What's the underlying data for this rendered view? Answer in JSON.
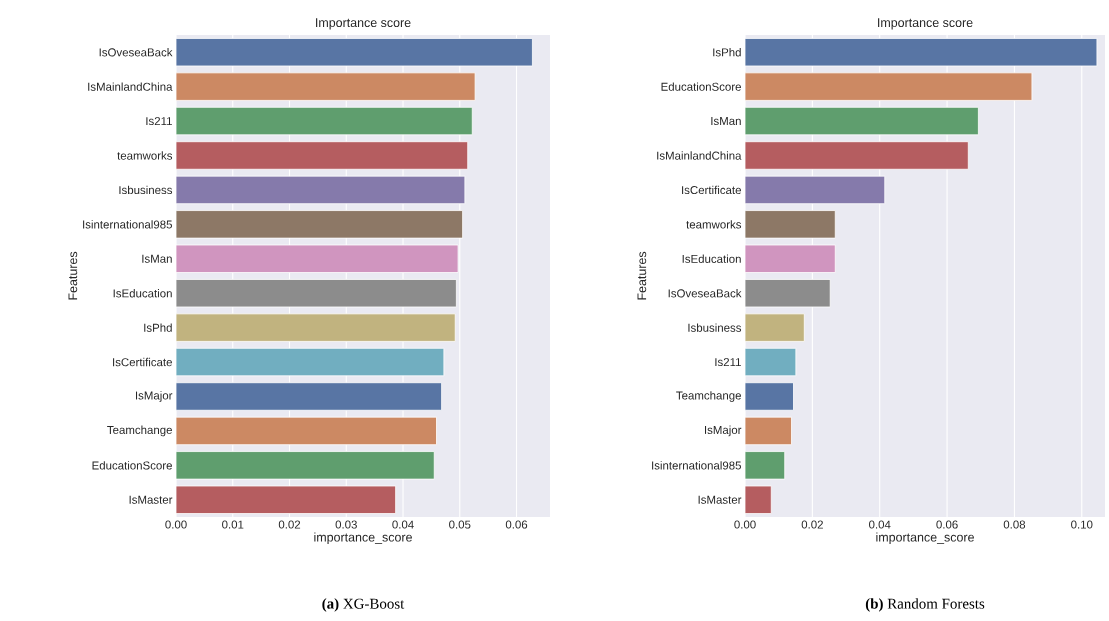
{
  "chart_data": [
    {
      "type": "bar",
      "orientation": "horizontal",
      "title": "Importance score",
      "xlabel": "importance_score",
      "ylabel": "Features",
      "categories": [
        "IsOveseaBack",
        "IsMainlandChina",
        "Is211",
        "teamworks",
        "Isbusiness",
        "Isinternational985",
        "IsMan",
        "IsEducation",
        "IsPhd",
        "IsCertificate",
        "IsMajor",
        "Teamchange",
        "EducationScore",
        "IsMaster"
      ],
      "values": [
        0.0628,
        0.0527,
        0.0522,
        0.0514,
        0.0509,
        0.0505,
        0.0497,
        0.0494,
        0.0492,
        0.0472,
        0.0468,
        0.0459,
        0.0455,
        0.0387
      ],
      "colors": [
        "#5875a4",
        "#cc8963",
        "#5f9e6e",
        "#b55d60",
        "#857aab",
        "#8d7866",
        "#d095bf",
        "#8c8c8c",
        "#c1b37f",
        "#71aec0",
        "#5875a4",
        "#cc8963",
        "#5f9e6e",
        "#b55d60"
      ],
      "xlim": [
        0,
        0.0659
      ],
      "xticks": [
        {
          "value": 0,
          "label": "0.00"
        },
        {
          "value": 0.01,
          "label": "0.01"
        },
        {
          "value": 0.02,
          "label": "0.02"
        },
        {
          "value": 0.03,
          "label": "0.03"
        },
        {
          "value": 0.04,
          "label": "0.04"
        },
        {
          "value": 0.05,
          "label": "0.05"
        },
        {
          "value": 0.06,
          "label": "0.06"
        }
      ],
      "grid": "x",
      "annotations": [
        "**(a)** XG-Boost"
      ]
    },
    {
      "type": "bar",
      "orientation": "horizontal",
      "title": "Importance score",
      "xlabel": "importance_score",
      "ylabel": "Features",
      "categories": [
        "IsPhd",
        "EducationScore",
        "IsMan",
        "IsMainlandChina",
        "IsCertificate",
        "teamworks",
        "IsEducation",
        "IsOveseaBack",
        "Isbusiness",
        "Is211",
        "Teamchange",
        "IsMajor",
        "Isinternational985",
        "IsMaster"
      ],
      "values": [
        0.1045,
        0.0852,
        0.0693,
        0.0663,
        0.0415,
        0.0268,
        0.0268,
        0.0253,
        0.0176,
        0.0151,
        0.0144,
        0.0138,
        0.0118,
        0.0078
      ],
      "colors": [
        "#5875a4",
        "#cc8963",
        "#5f9e6e",
        "#b55d60",
        "#857aab",
        "#8d7866",
        "#d095bf",
        "#8c8c8c",
        "#c1b37f",
        "#71aec0",
        "#5875a4",
        "#cc8963",
        "#5f9e6e",
        "#b55d60"
      ],
      "xlim": [
        0,
        0.1069
      ],
      "xticks": [
        {
          "value": 0,
          "label": "0.00"
        },
        {
          "value": 0.02,
          "label": "0.02"
        },
        {
          "value": 0.04,
          "label": "0.04"
        },
        {
          "value": 0.06,
          "label": "0.06"
        },
        {
          "value": 0.08,
          "label": "0.08"
        },
        {
          "value": 0.1,
          "label": "0.10"
        }
      ],
      "grid": "x",
      "annotations": [
        "**(b)** Random Forests"
      ]
    }
  ]
}
